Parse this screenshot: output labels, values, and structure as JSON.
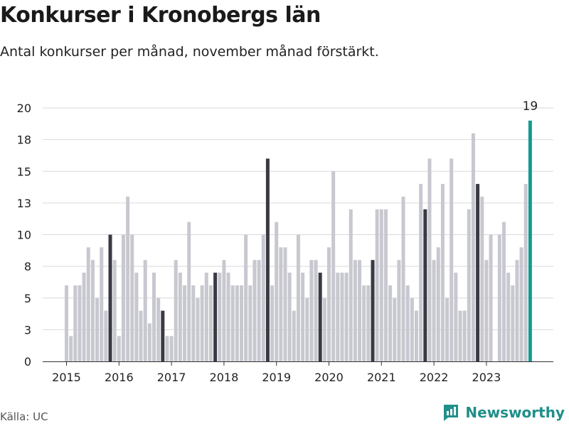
{
  "header": {
    "title": "Konkurser i Kronobergs län",
    "subtitle": "Antal konkurser per månad, november månad förstärkt."
  },
  "footer": {
    "source": "Källa: UC",
    "brand": "Newsworthy",
    "brand_icon": "newsworthy-logo-icon"
  },
  "colors": {
    "bar": "#c8c8d0",
    "highlight": "#3a3a44",
    "latest": "#159a91",
    "grid": "#d9d9d9",
    "brand": "#1f8f8a"
  },
  "chart_data": {
    "type": "bar",
    "x_tick_labels": [
      "2015",
      "2016",
      "2017",
      "2018",
      "2019",
      "2020",
      "2021",
      "2022",
      "2023"
    ],
    "y_tick_labels": [
      "0",
      "3",
      "5",
      "8",
      "10",
      "13",
      "15",
      "18",
      "20"
    ],
    "ylim": [
      0,
      20
    ],
    "grid": true,
    "start": "2015-01",
    "end": "2023-11",
    "highlight": "november",
    "latest_label": "19",
    "values": [
      6,
      2,
      6,
      6,
      7,
      9,
      8,
      5,
      9,
      4,
      10,
      8,
      2,
      10,
      13,
      10,
      7,
      4,
      8,
      3,
      7,
      5,
      4,
      2,
      2,
      8,
      7,
      6,
      11,
      6,
      5,
      6,
      7,
      6,
      7,
      7,
      8,
      7,
      6,
      6,
      6,
      10,
      6,
      8,
      8,
      10,
      16,
      6,
      11,
      9,
      9,
      7,
      4,
      10,
      7,
      5,
      8,
      8,
      7,
      5,
      9,
      15,
      7,
      7,
      7,
      12,
      8,
      8,
      6,
      6,
      8,
      12,
      12,
      12,
      6,
      5,
      8,
      13,
      6,
      5,
      4,
      14,
      12,
      16,
      8,
      9,
      14,
      5,
      16,
      7,
      4,
      4,
      12,
      18,
      14,
      13,
      8,
      10,
      0,
      10,
      11,
      7,
      6,
      8,
      9,
      14,
      19
    ]
  }
}
